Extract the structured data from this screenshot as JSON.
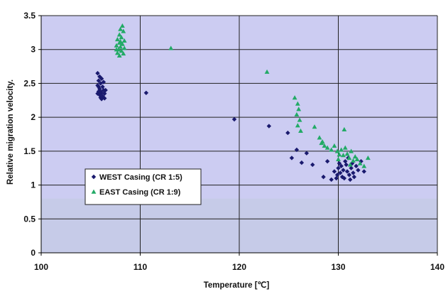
{
  "chart_data": {
    "type": "scatter",
    "xlabel": "Temperature [℃]",
    "ylabel": "Relative migration velocity.",
    "xlim": [
      100,
      140
    ],
    "ylim": [
      0,
      3.5
    ],
    "x_ticks": [
      "100",
      "110",
      "120",
      "130",
      "140"
    ],
    "y_ticks": [
      "0",
      "0.5",
      "1",
      "1.5",
      "2",
      "2.5",
      "3",
      "3.5"
    ],
    "grid": true,
    "legend_position": "left-middle",
    "colors": {
      "plot_background": "#ccccf2",
      "lower_band": "#c6cbe8",
      "west": "#1a1a6e",
      "east": "#22aa66"
    },
    "series": [
      {
        "name": "WEST Casing (CR 1:5)",
        "marker": "diamond",
        "points": [
          [
            105.7,
            2.65
          ],
          [
            105.9,
            2.6
          ],
          [
            106.1,
            2.57
          ],
          [
            105.8,
            2.54
          ],
          [
            106.0,
            2.5
          ],
          [
            105.7,
            2.47
          ],
          [
            106.2,
            2.45
          ],
          [
            105.9,
            2.42
          ],
          [
            106.3,
            2.4
          ],
          [
            105.8,
            2.38
          ],
          [
            106.1,
            2.36
          ],
          [
            106.4,
            2.35
          ],
          [
            105.9,
            2.33
          ],
          [
            106.2,
            2.31
          ],
          [
            106.0,
            2.29
          ],
          [
            106.4,
            2.28
          ],
          [
            106.1,
            2.27
          ],
          [
            105.8,
            2.45
          ],
          [
            106.3,
            2.52
          ],
          [
            106.0,
            2.38
          ],
          [
            106.5,
            2.4
          ],
          [
            105.7,
            2.35
          ],
          [
            110.6,
            2.36
          ],
          [
            119.5,
            1.97
          ],
          [
            123.0,
            1.87
          ],
          [
            124.9,
            1.77
          ],
          [
            125.3,
            1.4
          ],
          [
            125.8,
            1.52
          ],
          [
            126.3,
            1.33
          ],
          [
            126.8,
            1.47
          ],
          [
            127.4,
            1.3
          ],
          [
            128.5,
            1.12
          ],
          [
            128.9,
            1.35
          ],
          [
            129.3,
            1.08
          ],
          [
            129.6,
            1.2
          ],
          [
            129.9,
            1.15
          ],
          [
            130.0,
            1.25
          ],
          [
            130.1,
            1.32
          ],
          [
            130.2,
            1.18
          ],
          [
            130.3,
            1.28
          ],
          [
            130.4,
            1.12
          ],
          [
            130.5,
            1.22
          ],
          [
            130.6,
            1.1
          ],
          [
            130.8,
            1.3
          ],
          [
            130.9,
            1.2
          ],
          [
            131.0,
            1.4
          ],
          [
            131.1,
            1.15
          ],
          [
            131.2,
            1.08
          ],
          [
            131.3,
            1.25
          ],
          [
            131.4,
            1.32
          ],
          [
            131.5,
            1.18
          ],
          [
            131.6,
            1.12
          ],
          [
            131.8,
            1.28
          ],
          [
            132.0,
            1.22
          ],
          [
            132.3,
            1.35
          ],
          [
            132.6,
            1.2
          ],
          [
            129.8,
            1.1
          ],
          [
            130.7,
            1.35
          ]
        ]
      },
      {
        "name": "EAST Casing (CR 1:9)",
        "marker": "triangle",
        "points": [
          [
            108.2,
            3.35
          ],
          [
            108.0,
            3.3
          ],
          [
            108.3,
            3.27
          ],
          [
            107.9,
            3.22
          ],
          [
            108.1,
            3.18
          ],
          [
            107.7,
            3.15
          ],
          [
            108.4,
            3.13
          ],
          [
            107.9,
            3.1
          ],
          [
            108.2,
            3.08
          ],
          [
            107.6,
            3.06
          ],
          [
            108.0,
            3.04
          ],
          [
            108.4,
            3.02
          ],
          [
            107.8,
            3.0
          ],
          [
            108.1,
            2.98
          ],
          [
            107.7,
            2.95
          ],
          [
            108.3,
            2.94
          ],
          [
            107.9,
            2.91
          ],
          [
            108.0,
            3.12
          ],
          [
            107.6,
            3.0
          ],
          [
            113.1,
            3.02
          ],
          [
            122.8,
            2.67
          ],
          [
            125.6,
            2.29
          ],
          [
            125.9,
            2.2
          ],
          [
            126.0,
            2.12
          ],
          [
            125.8,
            2.04
          ],
          [
            126.1,
            1.96
          ],
          [
            125.9,
            1.88
          ],
          [
            126.2,
            1.8
          ],
          [
            127.6,
            1.86
          ],
          [
            128.1,
            1.7
          ],
          [
            128.4,
            1.64
          ],
          [
            128.6,
            1.58
          ],
          [
            128.9,
            1.55
          ],
          [
            129.3,
            1.52
          ],
          [
            129.6,
            1.58
          ],
          [
            129.9,
            1.5
          ],
          [
            130.1,
            1.45
          ],
          [
            130.3,
            1.52
          ],
          [
            130.5,
            1.44
          ],
          [
            130.7,
            1.55
          ],
          [
            130.9,
            1.46
          ],
          [
            131.1,
            1.4
          ],
          [
            131.3,
            1.5
          ],
          [
            131.5,
            1.36
          ],
          [
            131.7,
            1.42
          ],
          [
            131.9,
            1.38
          ],
          [
            132.2,
            1.32
          ],
          [
            132.6,
            1.28
          ],
          [
            133.0,
            1.4
          ],
          [
            130.6,
            1.82
          ],
          [
            128.3,
            1.62
          ],
          [
            131.2,
            1.3
          ],
          [
            130.0,
            1.38
          ]
        ]
      }
    ]
  }
}
